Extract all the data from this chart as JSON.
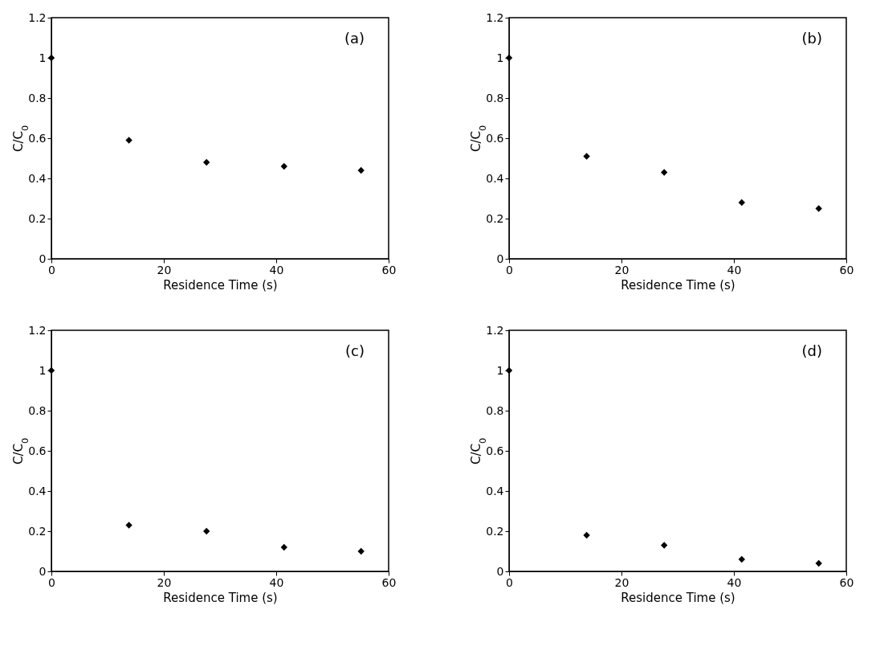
{
  "chart_data": [
    {
      "type": "scatter",
      "x": [
        0,
        13.8,
        27.6,
        41.4,
        55.1
      ],
      "series": [
        {
          "color": "#000000",
          "values": [
            1,
            0.59,
            0.48,
            0.46,
            0.44
          ]
        }
      ],
      "xlim": [
        0,
        60
      ],
      "xticks": [
        0,
        20,
        40,
        60
      ],
      "ylim": [
        0,
        1.2
      ],
      "yticks": [
        0,
        0.2,
        0.4,
        0.6,
        0.8,
        1,
        1.2
      ],
      "xlabel": "Residence Time (s)",
      "ylabel": "C/C$_{0}$",
      "annotations": [
        "(a)"
      ],
      "marker": "diamond"
    },
    {
      "type": "scatter",
      "x": [
        0,
        13.8,
        27.6,
        41.4,
        55.1
      ],
      "series": [
        {
          "color": "#000000",
          "values": [
            1,
            0.51,
            0.43,
            0.28,
            0.25
          ]
        }
      ],
      "xlim": [
        0,
        60
      ],
      "xticks": [
        0,
        20,
        40,
        60
      ],
      "ylim": [
        0,
        1.2
      ],
      "yticks": [
        0,
        0.2,
        0.4,
        0.6,
        0.8,
        1,
        1.2
      ],
      "xlabel": "Residence Time (s)",
      "ylabel": "C/C$_{0}$",
      "annotations": [
        "(b)"
      ],
      "marker": "diamond"
    },
    {
      "type": "scatter",
      "x": [
        0,
        13.8,
        27.6,
        41.4,
        55.1
      ],
      "series": [
        {
          "color": "#000000",
          "values": [
            1,
            0.23,
            0.2,
            0.12,
            0.1
          ]
        }
      ],
      "xlim": [
        0,
        60
      ],
      "xticks": [
        0,
        20,
        40,
        60
      ],
      "ylim": [
        0,
        1.2
      ],
      "yticks": [
        0,
        0.2,
        0.4,
        0.6,
        0.8,
        1,
        1.2
      ],
      "xlabel": "Residence Time (s)",
      "ylabel": "C/C$_{0}$",
      "annotations": [
        "(c)"
      ],
      "marker": "diamond"
    },
    {
      "type": "scatter",
      "x": [
        0,
        13.8,
        27.6,
        41.4,
        55.1
      ],
      "series": [
        {
          "color": "#000000",
          "values": [
            1,
            0.18,
            0.13,
            0.06,
            0.04
          ]
        }
      ],
      "xlim": [
        0,
        60
      ],
      "xticks": [
        0,
        20,
        40,
        60
      ],
      "ylim": [
        0,
        1.2
      ],
      "yticks": [
        0,
        0.2,
        0.4,
        0.6,
        0.8,
        1,
        1.2
      ],
      "xlabel": "Residence Time (s)",
      "ylabel": "C/C$_{0}$",
      "annotations": [
        "(d)"
      ],
      "marker": "diamond"
    }
  ]
}
